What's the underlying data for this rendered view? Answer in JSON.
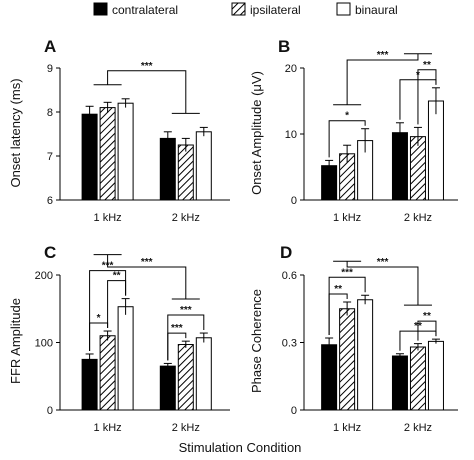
{
  "legend": {
    "items": [
      {
        "label": "contralateral",
        "fill": "solid"
      },
      {
        "label": "ipsilateral",
        "fill": "hatch"
      },
      {
        "label": "binaural",
        "fill": "open"
      }
    ]
  },
  "xlabel": "Stimulation Condition",
  "colors": {
    "solid": "#000000",
    "open": "#ffffff",
    "stroke": "#000000"
  },
  "chart_data": [
    {
      "letter": "A",
      "type": "bar",
      "ylabel": "Onset latency (ms)",
      "ylim": [
        6,
        9
      ],
      "yticks": [
        6,
        7,
        8,
        9
      ],
      "categories": [
        "1 kHz",
        "2 kHz"
      ],
      "series": [
        {
          "name": "contralateral",
          "values": [
            7.95,
            7.4
          ],
          "errors": [
            0.18,
            0.15
          ]
        },
        {
          "name": "ipsilateral",
          "values": [
            8.1,
            7.25
          ],
          "errors": [
            0.12,
            0.15
          ]
        },
        {
          "name": "binaural",
          "values": [
            8.2,
            7.55
          ],
          "errors": [
            0.1,
            0.1
          ]
        }
      ],
      "significance": [
        {
          "label": "***",
          "type": "between",
          "from": 0,
          "to": 1
        }
      ]
    },
    {
      "letter": "B",
      "type": "bar",
      "ylabel": "Onset Amplitude (μV)",
      "ylim": [
        0,
        20
      ],
      "yticks": [
        0,
        10,
        20
      ],
      "categories": [
        "1 kHz",
        "2 kHz"
      ],
      "series": [
        {
          "name": "contralateral",
          "values": [
            5.2,
            10.2
          ],
          "errors": [
            0.8,
            1.5
          ]
        },
        {
          "name": "ipsilateral",
          "values": [
            7.0,
            9.6
          ],
          "errors": [
            1.3,
            1.4
          ]
        },
        {
          "name": "binaural",
          "values": [
            9.0,
            15.0
          ],
          "errors": [
            1.8,
            2.0
          ]
        }
      ],
      "significance": [
        {
          "label": "***",
          "type": "between",
          "from": 0,
          "to": 1
        },
        {
          "label": "*",
          "type": "within",
          "cat": 0,
          "a": 0,
          "b": 2
        },
        {
          "label": "*",
          "type": "within",
          "cat": 1,
          "a": 0,
          "b": 2
        },
        {
          "label": "**",
          "type": "within",
          "cat": 1,
          "a": 1,
          "b": 2
        }
      ]
    },
    {
      "letter": "C",
      "type": "bar",
      "ylabel": "FFR Amplitude",
      "ylim": [
        0,
        200
      ],
      "yticks": [
        0,
        100,
        200
      ],
      "categories": [
        "1 kHz",
        "2 kHz"
      ],
      "series": [
        {
          "name": "contralateral",
          "values": [
            75,
            65
          ],
          "errors": [
            8,
            4
          ]
        },
        {
          "name": "ipsilateral",
          "values": [
            110,
            97
          ],
          "errors": [
            7,
            5
          ]
        },
        {
          "name": "binaural",
          "values": [
            153,
            107
          ],
          "errors": [
            12,
            7
          ]
        }
      ],
      "significance": [
        {
          "label": "***",
          "type": "between",
          "from": 0,
          "to": 1
        },
        {
          "label": "*",
          "type": "within",
          "cat": 0,
          "a": 0,
          "b": 1
        },
        {
          "label": "**",
          "type": "within",
          "cat": 0,
          "a": 1,
          "b": 2
        },
        {
          "label": "***",
          "type": "within",
          "cat": 0,
          "a": 0,
          "b": 2
        },
        {
          "label": "***",
          "type": "within",
          "cat": 1,
          "a": 0,
          "b": 1
        },
        {
          "label": "***",
          "type": "within",
          "cat": 1,
          "a": 0,
          "b": 2
        }
      ]
    },
    {
      "letter": "D",
      "type": "bar",
      "ylabel": "Phase Coherence",
      "ylim": [
        0,
        0.6
      ],
      "yticks": [
        0,
        0.3,
        0.6
      ],
      "categories": [
        "1 kHz",
        "2 kHz"
      ],
      "series": [
        {
          "name": "contralateral",
          "values": [
            0.29,
            0.24
          ],
          "errors": [
            0.03,
            0.01
          ]
        },
        {
          "name": "ipsilateral",
          "values": [
            0.45,
            0.28
          ],
          "errors": [
            0.03,
            0.015
          ]
        },
        {
          "name": "binaural",
          "values": [
            0.49,
            0.305
          ],
          "errors": [
            0.02,
            0.01
          ]
        }
      ],
      "significance": [
        {
          "label": "***",
          "type": "between",
          "from": 0,
          "to": 1
        },
        {
          "label": "**",
          "type": "within",
          "cat": 0,
          "a": 0,
          "b": 1
        },
        {
          "label": "***",
          "type": "within",
          "cat": 0,
          "a": 0,
          "b": 2
        },
        {
          "label": "**",
          "type": "within",
          "cat": 1,
          "a": 0,
          "b": 2
        },
        {
          "label": "**",
          "type": "within",
          "cat": 1,
          "a": 1,
          "b": 2
        }
      ]
    }
  ]
}
